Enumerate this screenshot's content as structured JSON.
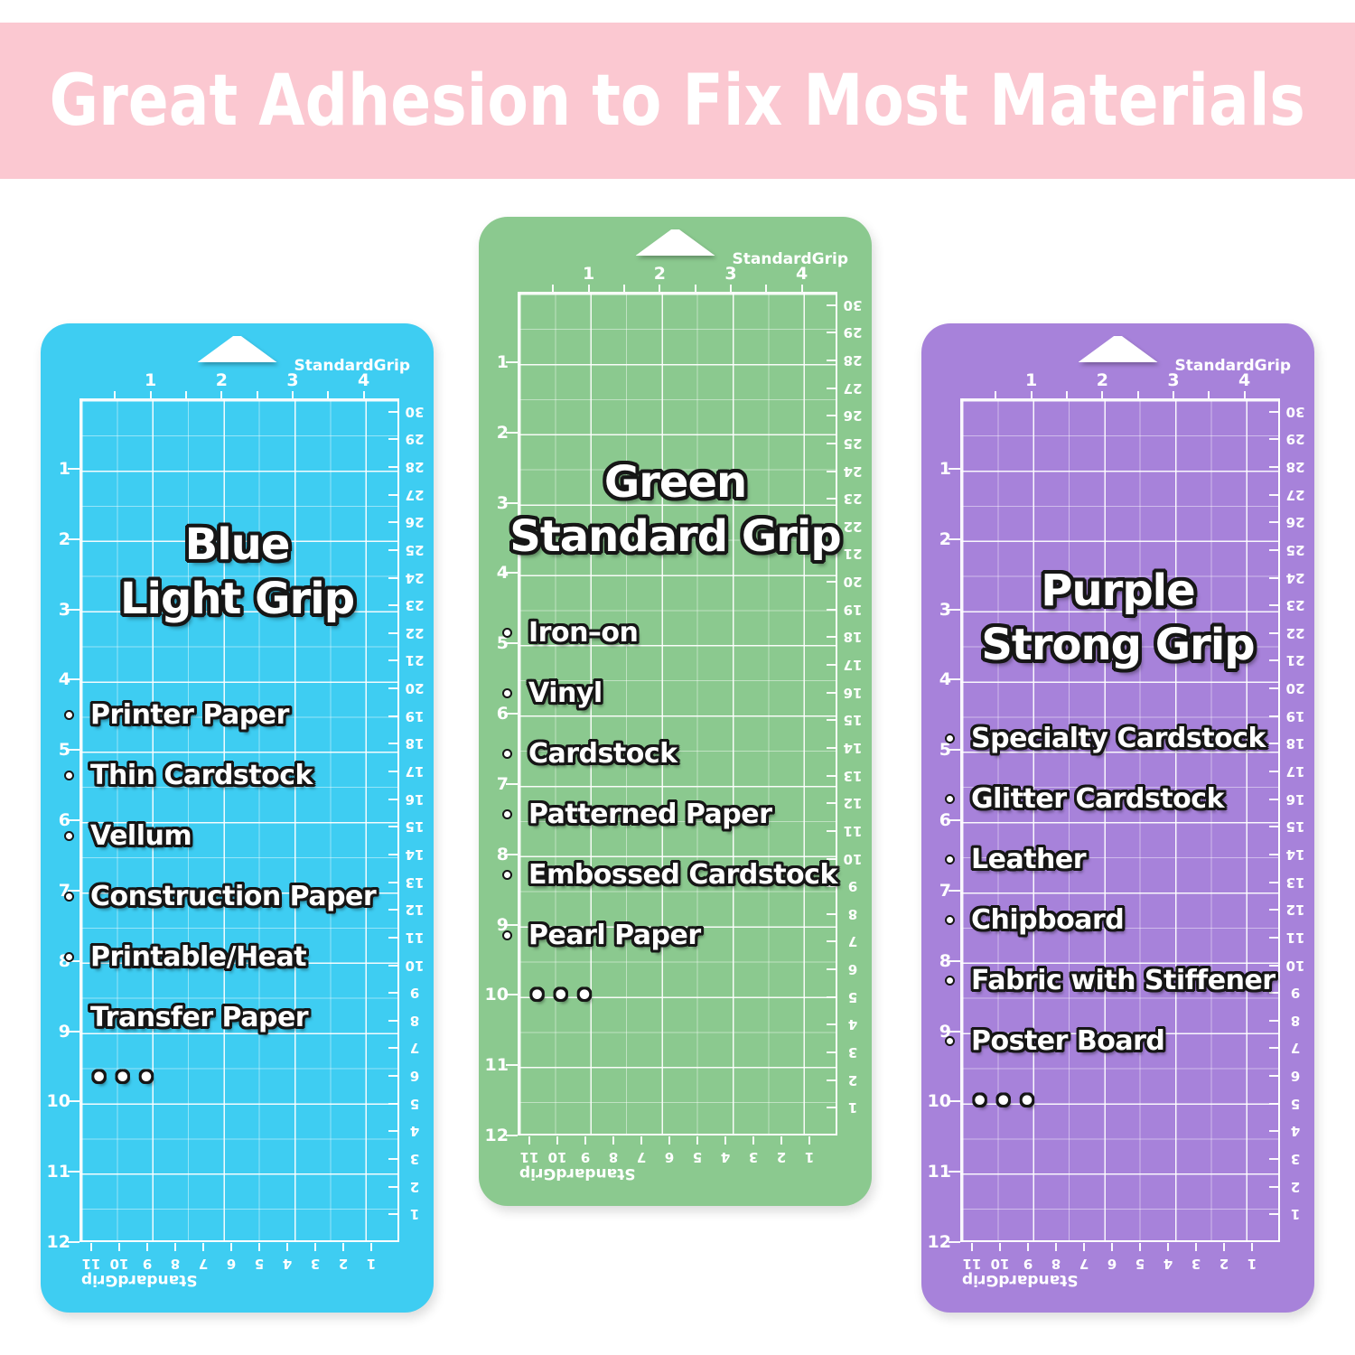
{
  "banner": {
    "text": "Great Adhesion to Fix Most Materials",
    "bg_color": "#FBC8D1",
    "text_color": "#FFFFFF"
  },
  "brand_label": "StandardGrip",
  "ruler": {
    "top_inch_labels": [
      "1",
      "2",
      "3",
      "4"
    ],
    "left_inch_labels": [
      "1",
      "2",
      "3",
      "4",
      "5",
      "6",
      "7",
      "8",
      "9",
      "10",
      "11",
      "12"
    ],
    "right_cm_labels": [
      "30",
      "29",
      "28",
      "27",
      "26",
      "25",
      "24",
      "23",
      "22",
      "21",
      "20",
      "19",
      "18",
      "17",
      "16",
      "15",
      "14",
      "13",
      "12",
      "11",
      "10",
      "9",
      "8",
      "7",
      "6",
      "5",
      "4",
      "3",
      "2",
      "1"
    ],
    "bottom_cm_labels": [
      "11",
      "10",
      "9",
      "8",
      "7",
      "6",
      "5",
      "4",
      "3",
      "2",
      "1"
    ]
  },
  "colors": {
    "grid_line": "#FFFFFF",
    "text_outline": "#161616",
    "label_text": "#FFFFFF"
  },
  "mats": [
    {
      "name": "blue-light-grip",
      "color": "#3ECDF2",
      "title_lines": [
        "Blue",
        "Light Grip"
      ],
      "materials": [
        {
          "text": "Printer Paper",
          "bullet": true
        },
        {
          "text": "Thin Cardstock",
          "bullet": true
        },
        {
          "text": "Vellum",
          "bullet": true
        },
        {
          "text": "Construction Paper",
          "bullet": true
        },
        {
          "text": "Printable/Heat",
          "bullet": true
        },
        {
          "text": "Transfer Paper",
          "bullet": false
        },
        {
          "text": "•••",
          "bullet": false
        }
      ]
    },
    {
      "name": "green-standard-grip",
      "color": "#8BC98F",
      "title_lines": [
        "Green",
        "Standard Grip"
      ],
      "materials": [
        {
          "text": "Iron–on",
          "bullet": true
        },
        {
          "text": "Vinyl",
          "bullet": true
        },
        {
          "text": "Cardstock",
          "bullet": true
        },
        {
          "text": "Patterned Paper",
          "bullet": true
        },
        {
          "text": "Embossed Cardstock",
          "bullet": true
        },
        {
          "text": "Pearl Paper",
          "bullet": true
        },
        {
          "text": "•••",
          "bullet": false
        }
      ]
    },
    {
      "name": "purple-strong-grip",
      "color": "#A782DA",
      "title_lines": [
        "Purple",
        "Strong Grip"
      ],
      "materials": [
        {
          "text": "Specialty Cardstock",
          "bullet": true
        },
        {
          "text": "Glitter Cardstock",
          "bullet": true
        },
        {
          "text": "Leather",
          "bullet": true
        },
        {
          "text": "Chipboard",
          "bullet": true
        },
        {
          "text": "Fabric with Stiffener",
          "bullet": true
        },
        {
          "text": "Poster Board",
          "bullet": true
        },
        {
          "text": "•••",
          "bullet": false
        }
      ]
    }
  ]
}
